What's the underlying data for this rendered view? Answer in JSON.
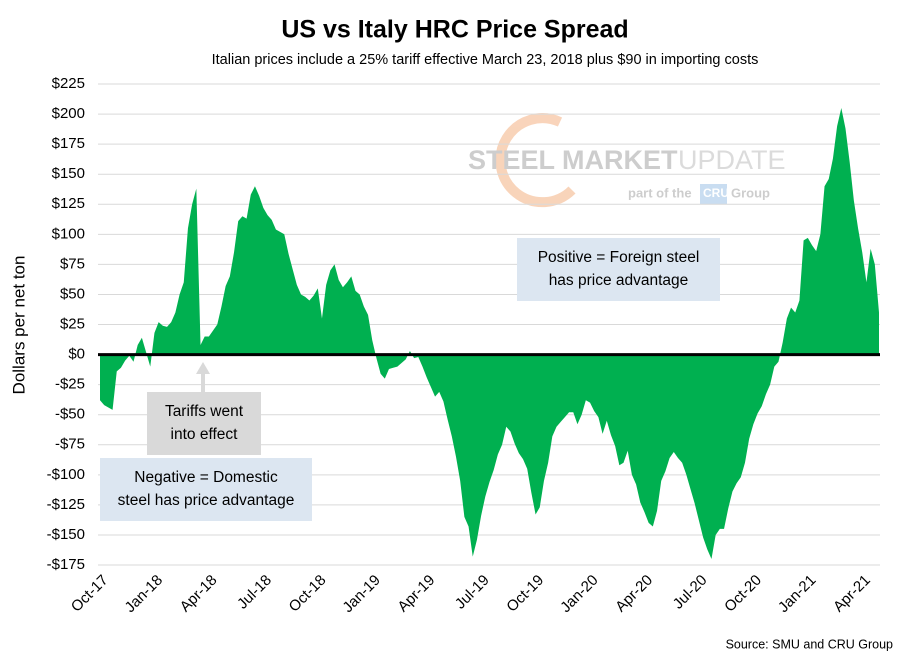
{
  "chart_data": {
    "type": "area",
    "title": "US vs Italy HRC Price Spread",
    "subtitle": "Italian prices include a 25% tariff effective March 23, 2018 plus $90 in importing costs",
    "y_label": "Dollars per net ton",
    "source": "Source: SMU and CRU Group",
    "watermark": {
      "brand_1": "STEEL MARKET",
      "brand_2": "UPDATE",
      "part_of": "part of the",
      "cru": "CRU",
      "group": "Group"
    },
    "annotations": [
      {
        "lines": [
          "Positive = Foreign steel",
          "has price advantage"
        ]
      },
      {
        "lines": [
          "Negative = Domestic",
          "steel has price advantage"
        ]
      },
      {
        "lines": [
          "Tariffs went",
          "into effect"
        ]
      }
    ],
    "color": "#00b050",
    "ylim": [
      -175,
      225
    ],
    "yticks": [
      {
        "value": -175,
        "label": "-$175"
      },
      {
        "value": -150,
        "label": "-$150"
      },
      {
        "value": -125,
        "label": "-$125"
      },
      {
        "value": -100,
        "label": "-$100"
      },
      {
        "value": -75,
        "label": "-$75"
      },
      {
        "value": -50,
        "label": "-$50"
      },
      {
        "value": -25,
        "label": "-$25"
      },
      {
        "value": 0,
        "label": "$0"
      },
      {
        "value": 25,
        "label": "$25"
      },
      {
        "value": 50,
        "label": "$50"
      },
      {
        "value": 75,
        "label": "$75"
      },
      {
        "value": 100,
        "label": "$100"
      },
      {
        "value": 125,
        "label": "$125"
      },
      {
        "value": 150,
        "label": "$150"
      },
      {
        "value": 175,
        "label": "$175"
      },
      {
        "value": 200,
        "label": "$200"
      },
      {
        "value": 225,
        "label": "$225"
      }
    ],
    "grid": true,
    "categories": [
      "Oct-17",
      null,
      null,
      null,
      null,
      null,
      null,
      null,
      null,
      null,
      null,
      null,
      null,
      "Jan-18",
      null,
      null,
      null,
      null,
      null,
      null,
      null,
      null,
      null,
      null,
      null,
      null,
      "Apr-18",
      null,
      null,
      null,
      null,
      null,
      null,
      null,
      null,
      null,
      null,
      null,
      null,
      "Jul-18",
      null,
      null,
      null,
      null,
      null,
      null,
      null,
      null,
      null,
      null,
      null,
      null,
      "Oct-18",
      null,
      null,
      null,
      null,
      null,
      null,
      null,
      null,
      null,
      null,
      null,
      null,
      "Jan-19",
      null,
      null,
      null,
      null,
      null,
      null,
      null,
      null,
      null,
      null,
      null,
      null,
      "Apr-19",
      null,
      null,
      null,
      null,
      null,
      null,
      null,
      null,
      null,
      null,
      null,
      null,
      "Jul-19",
      null,
      null,
      null,
      null,
      null,
      null,
      null,
      null,
      null,
      null,
      null,
      null,
      "Oct-19",
      null,
      null,
      null,
      null,
      null,
      null,
      null,
      null,
      null,
      null,
      null,
      null,
      "Jan-20",
      null,
      null,
      null,
      null,
      null,
      null,
      null,
      null,
      null,
      null,
      null,
      null,
      "Apr-20",
      null,
      null,
      null,
      null,
      null,
      null,
      null,
      null,
      null,
      null,
      null,
      null,
      "Jul-20",
      null,
      null,
      null,
      null,
      null,
      null,
      null,
      null,
      null,
      null,
      null,
      null,
      "Oct-20",
      null,
      null,
      null,
      null,
      null,
      null,
      null,
      null,
      null,
      null,
      null,
      null,
      "Jan-21",
      null,
      null,
      null,
      null,
      null,
      null,
      null,
      null,
      null,
      null,
      null,
      null,
      "Apr-21",
      null,
      null,
      null,
      null
    ],
    "values": [
      -38,
      -42,
      -44,
      -46,
      -14,
      -11,
      -5,
      -1,
      -6,
      8,
      14,
      2,
      -10,
      18,
      27,
      24,
      23,
      27,
      35,
      50,
      60,
      105,
      125,
      138,
      8,
      15,
      15,
      20,
      25,
      40,
      57,
      65,
      85,
      111,
      115,
      113,
      133,
      140,
      132,
      122,
      116,
      112,
      104,
      102,
      100,
      84,
      71,
      58,
      50,
      48,
      45,
      49,
      55,
      30,
      58,
      70,
      75,
      62,
      56,
      60,
      65,
      53,
      50,
      40,
      33,
      12,
      -3,
      -16,
      -20,
      -12,
      -11,
      -10,
      -7,
      -4,
      3,
      -3,
      -2,
      -10,
      -19,
      -27,
      -35,
      -31,
      -39,
      -54,
      -68,
      -85,
      -105,
      -135,
      -143,
      -168,
      -154,
      -134,
      -118,
      -106,
      -96,
      -83,
      -75,
      -60,
      -64,
      -74,
      -82,
      -87,
      -95,
      -115,
      -133,
      -127,
      -105,
      -90,
      -68,
      -60,
      -56,
      -52,
      -48,
      -48,
      -58,
      -50,
      -38,
      -40,
      -47,
      -52,
      -66,
      -55,
      -67,
      -76,
      -92,
      -90,
      -80,
      -100,
      -108,
      -123,
      -131,
      -140,
      -143,
      -130,
      -105,
      -97,
      -86,
      -81,
      -86,
      -90,
      -100,
      -112,
      -124,
      -138,
      -152,
      -162,
      -170,
      -150,
      -145,
      -145,
      -128,
      -114,
      -107,
      -102,
      -90,
      -70,
      -58,
      -49,
      -43,
      -33,
      -25,
      -10,
      -6,
      10,
      30,
      39,
      35,
      45,
      95,
      97,
      91,
      86,
      100,
      140,
      146,
      163,
      190,
      205,
      188,
      160,
      128,
      105,
      85,
      60,
      88,
      75,
      35
    ]
  }
}
